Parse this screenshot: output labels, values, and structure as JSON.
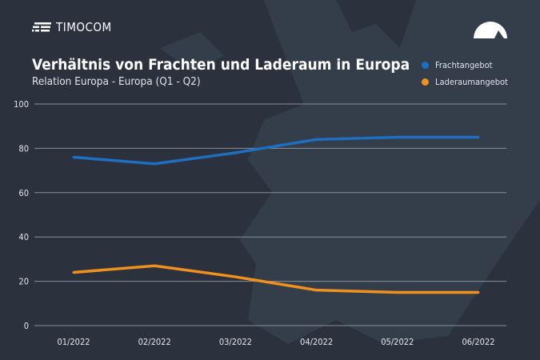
{
  "brand": {
    "logo_text": "TIMOCOM"
  },
  "header": {
    "title": "Verhältnis von Frachten und Laderaum in Europa",
    "subtitle": "Relation Europa - Europa (Q1 - Q2)"
  },
  "icons": {
    "logo": "timocom-logo-icon",
    "gauge": "gauge-icon"
  },
  "chart_data": {
    "type": "line",
    "title": "Verhältnis von Frachten und Laderaum in Europa",
    "subtitle": "Relation Europa - Europa (Q1 - Q2)",
    "categories": [
      "01/2022",
      "02/2022",
      "03/2022",
      "04/2022",
      "05/2022",
      "06/2022"
    ],
    "series": [
      {
        "name": "Frachtangebot",
        "color": "#1f6fc0",
        "values": [
          76,
          73,
          78,
          84,
          85,
          85
        ]
      },
      {
        "name": "Laderaumangebot",
        "color": "#f0901e",
        "values": [
          24,
          27,
          22,
          16,
          15,
          15
        ]
      }
    ],
    "ylim": [
      0,
      100
    ],
    "yticks": [
      0,
      20,
      40,
      60,
      80,
      100
    ],
    "grid": true,
    "legend": "top-right",
    "xlabel": "",
    "ylabel": ""
  }
}
